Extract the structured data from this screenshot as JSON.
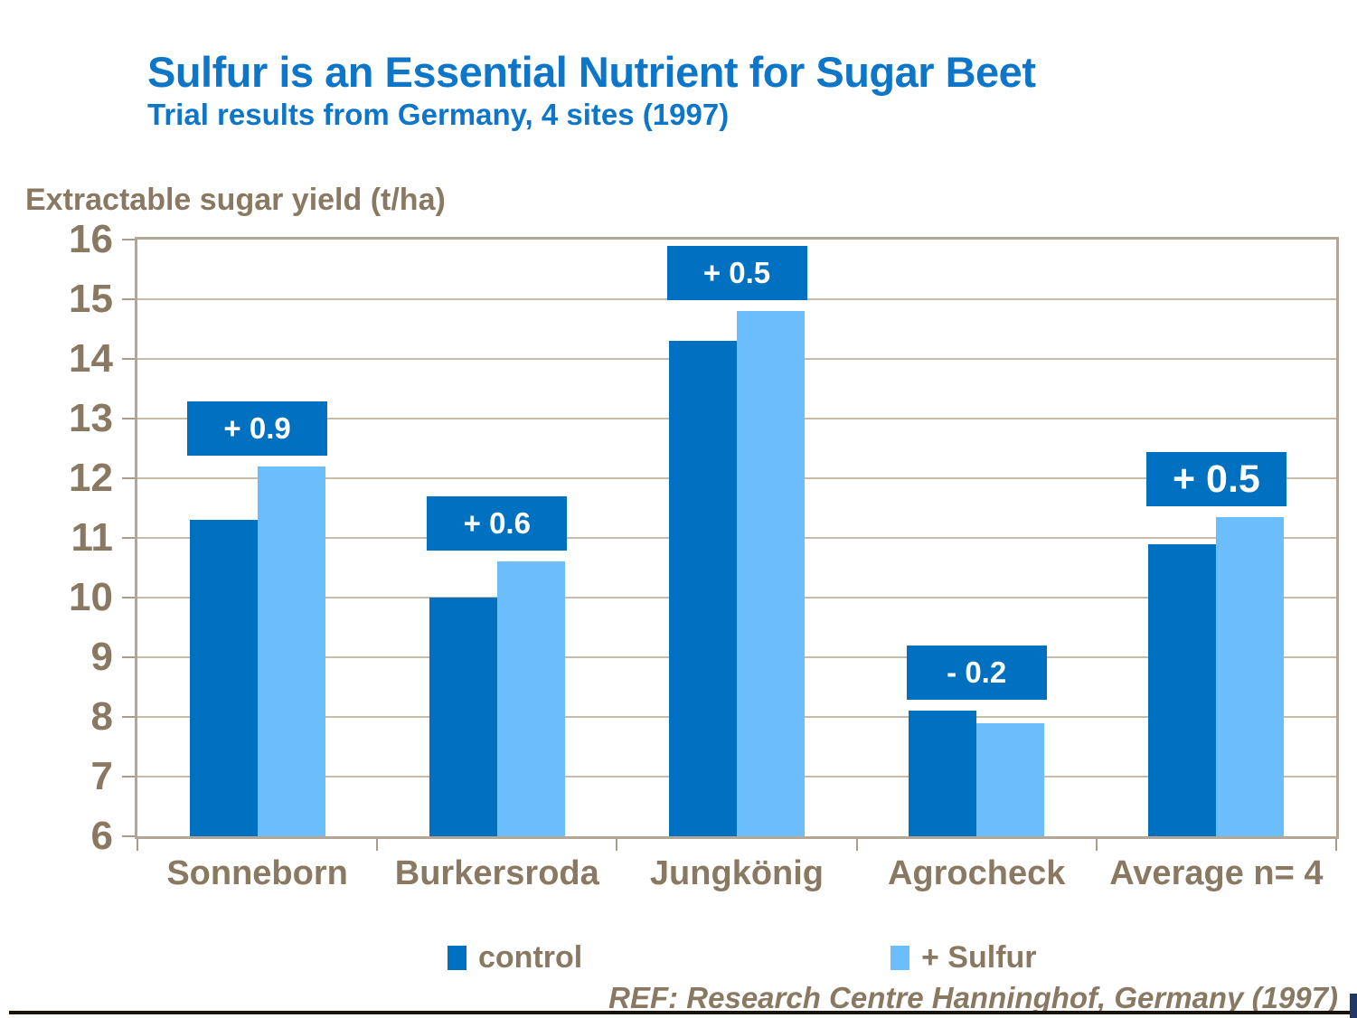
{
  "slide": {
    "title": "Sulfur is an Essential Nutrient for Sugar Beet",
    "subtitle": "Trial results from Germany, 4 sites (1997)",
    "reference": "REF: Research Centre Hanninghof, Germany (1997)"
  },
  "colors": {
    "title_text": "#0E76C8",
    "axis_text": "#8A7962",
    "gridline": "#C7BCAC",
    "plot_frame": "#B3A695",
    "control_bar": "#0070C0",
    "sulfur_bar": "#6BBEFB",
    "annotation_bg": "#0070C0",
    "annotation_text": "#FFFFFF",
    "bottom_rule": "#1B130A",
    "corner_accent": "#1F3864"
  },
  "chart_data": {
    "type": "bar",
    "title": "Sulfur is an Essential Nutrient for Sugar Beet",
    "subtitle": "Trial results from Germany, 4 sites (1997)",
    "ylabel": "Extractable sugar yield (t/ha)",
    "xlabel": "",
    "categories": [
      "Sonneborn",
      "Burkersroda",
      "Jungkönig",
      "Agrocheck",
      "Average n= 4"
    ],
    "series": [
      {
        "name": "control",
        "color": "#0070C0",
        "values": [
          11.3,
          10.0,
          14.3,
          8.1,
          10.9
        ]
      },
      {
        "name": "+ Sulfur",
        "color": "#6BBEFB",
        "values": [
          12.2,
          10.6,
          14.8,
          7.9,
          11.35
        ]
      }
    ],
    "annotations": [
      {
        "category": "Sonneborn",
        "label": "+ 0.9",
        "large": false
      },
      {
        "category": "Burkersroda",
        "label": "+ 0.6",
        "large": false
      },
      {
        "category": "Jungkönig",
        "label": "+ 0.5",
        "large": false
      },
      {
        "category": "Agrocheck",
        "label": "- 0.2",
        "large": false
      },
      {
        "category": "Average n= 4",
        "label": "+ 0.5",
        "large": true
      }
    ],
    "ylim": [
      6,
      16
    ],
    "ytick_step": 1,
    "grid": true,
    "legend_position": "bottom"
  }
}
